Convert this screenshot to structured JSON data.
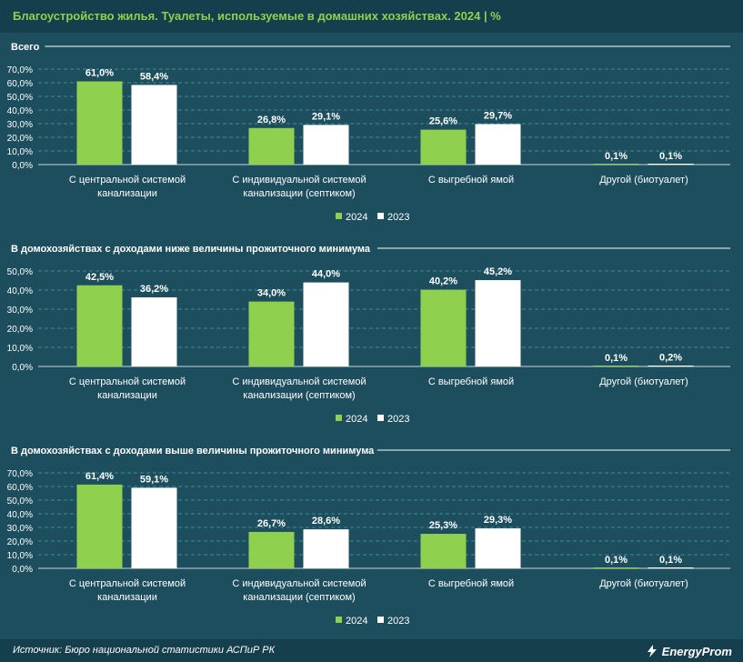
{
  "header": {
    "title": "Благоустройство жилья. Туалеты, используемые в домашних хозяйствах. 2024 | %"
  },
  "colors": {
    "series_2024": "#8fd14f",
    "series_2023": "#ffffff",
    "background": "#1d4e5e",
    "header_bg": "#163f4d",
    "gridline": "#3f8a9a"
  },
  "chart_data": [
    {
      "type": "bar",
      "title": "Всего",
      "categories": [
        "С центральной системой канализации",
        "С индивидуальной системой канализации (септиком)",
        "С выгребной ямой",
        "Другой (биотуалет)"
      ],
      "series": [
        {
          "name": "2024",
          "values": [
            61.0,
            26.8,
            25.6,
            0.1
          ],
          "labels": [
            "61,0%",
            "26,8%",
            "25,6%",
            "0,1%"
          ]
        },
        {
          "name": "2023",
          "values": [
            58.4,
            29.1,
            29.7,
            0.1
          ],
          "labels": [
            "58,4%",
            "29,1%",
            "29,7%",
            "0,1%"
          ]
        }
      ],
      "ylim": [
        0,
        70
      ],
      "yticks": [
        "70,0%",
        "60,0%",
        "50,0%",
        "40,0%",
        "30,0%",
        "20,0%",
        "10,0%",
        "0,0%"
      ],
      "legend": [
        "2024",
        "2023"
      ],
      "legend_position": "bottom"
    },
    {
      "type": "bar",
      "title": "В домохозяйствах с доходами ниже величины прожиточного минимума",
      "categories": [
        "С центральной системой канализации",
        "С индивидуальной системой канализации (септиком)",
        "С выгребной ямой",
        "Другой (биотуалет)"
      ],
      "series": [
        {
          "name": "2024",
          "values": [
            42.5,
            34.0,
            40.2,
            0.1
          ],
          "labels": [
            "42,5%",
            "34,0%",
            "40,2%",
            "0,1%"
          ]
        },
        {
          "name": "2023",
          "values": [
            36.2,
            44.0,
            45.2,
            0.2
          ],
          "labels": [
            "36,2%",
            "44,0%",
            "45,2%",
            "0,2%"
          ]
        }
      ],
      "ylim": [
        0,
        50
      ],
      "yticks": [
        "50,0%",
        "40,0%",
        "30,0%",
        "20,0%",
        "10,0%",
        "0,0%"
      ],
      "legend": [
        "2024",
        "2023"
      ],
      "legend_position": "bottom"
    },
    {
      "type": "bar",
      "title": "В домохозяйствах с доходами выше величины прожиточного минимума",
      "categories": [
        "С центральной системой канализации",
        "С индивидуальной системой канализации (септиком)",
        "С выгребной ямой",
        "Другой (биотуалет)"
      ],
      "series": [
        {
          "name": "2024",
          "values": [
            61.4,
            26.7,
            25.3,
            0.1
          ],
          "labels": [
            "61,4%",
            "26,7%",
            "25,3%",
            "0,1%"
          ]
        },
        {
          "name": "2023",
          "values": [
            59.1,
            28.6,
            29.3,
            0.1
          ],
          "labels": [
            "59,1%",
            "28,6%",
            "29,3%",
            "0,1%"
          ]
        }
      ],
      "ylim": [
        0,
        70
      ],
      "yticks": [
        "70,0%",
        "60,0%",
        "50,0%",
        "40,0%",
        "30,0%",
        "20,0%",
        "10,0%",
        "0,0%"
      ],
      "legend": [
        "2024",
        "2023"
      ],
      "legend_position": "bottom"
    }
  ],
  "category_lines": [
    [
      "С центральной системой",
      "канализации"
    ],
    [
      "С индивидуальной системой",
      "канализации (септиком)"
    ],
    [
      "С выгребной ямой"
    ],
    [
      "Другой (биотуалет)"
    ]
  ],
  "footer": {
    "source": "Источник: Бюро национальной статистики АСПиР РК",
    "logo_text": "EnergyProm"
  }
}
